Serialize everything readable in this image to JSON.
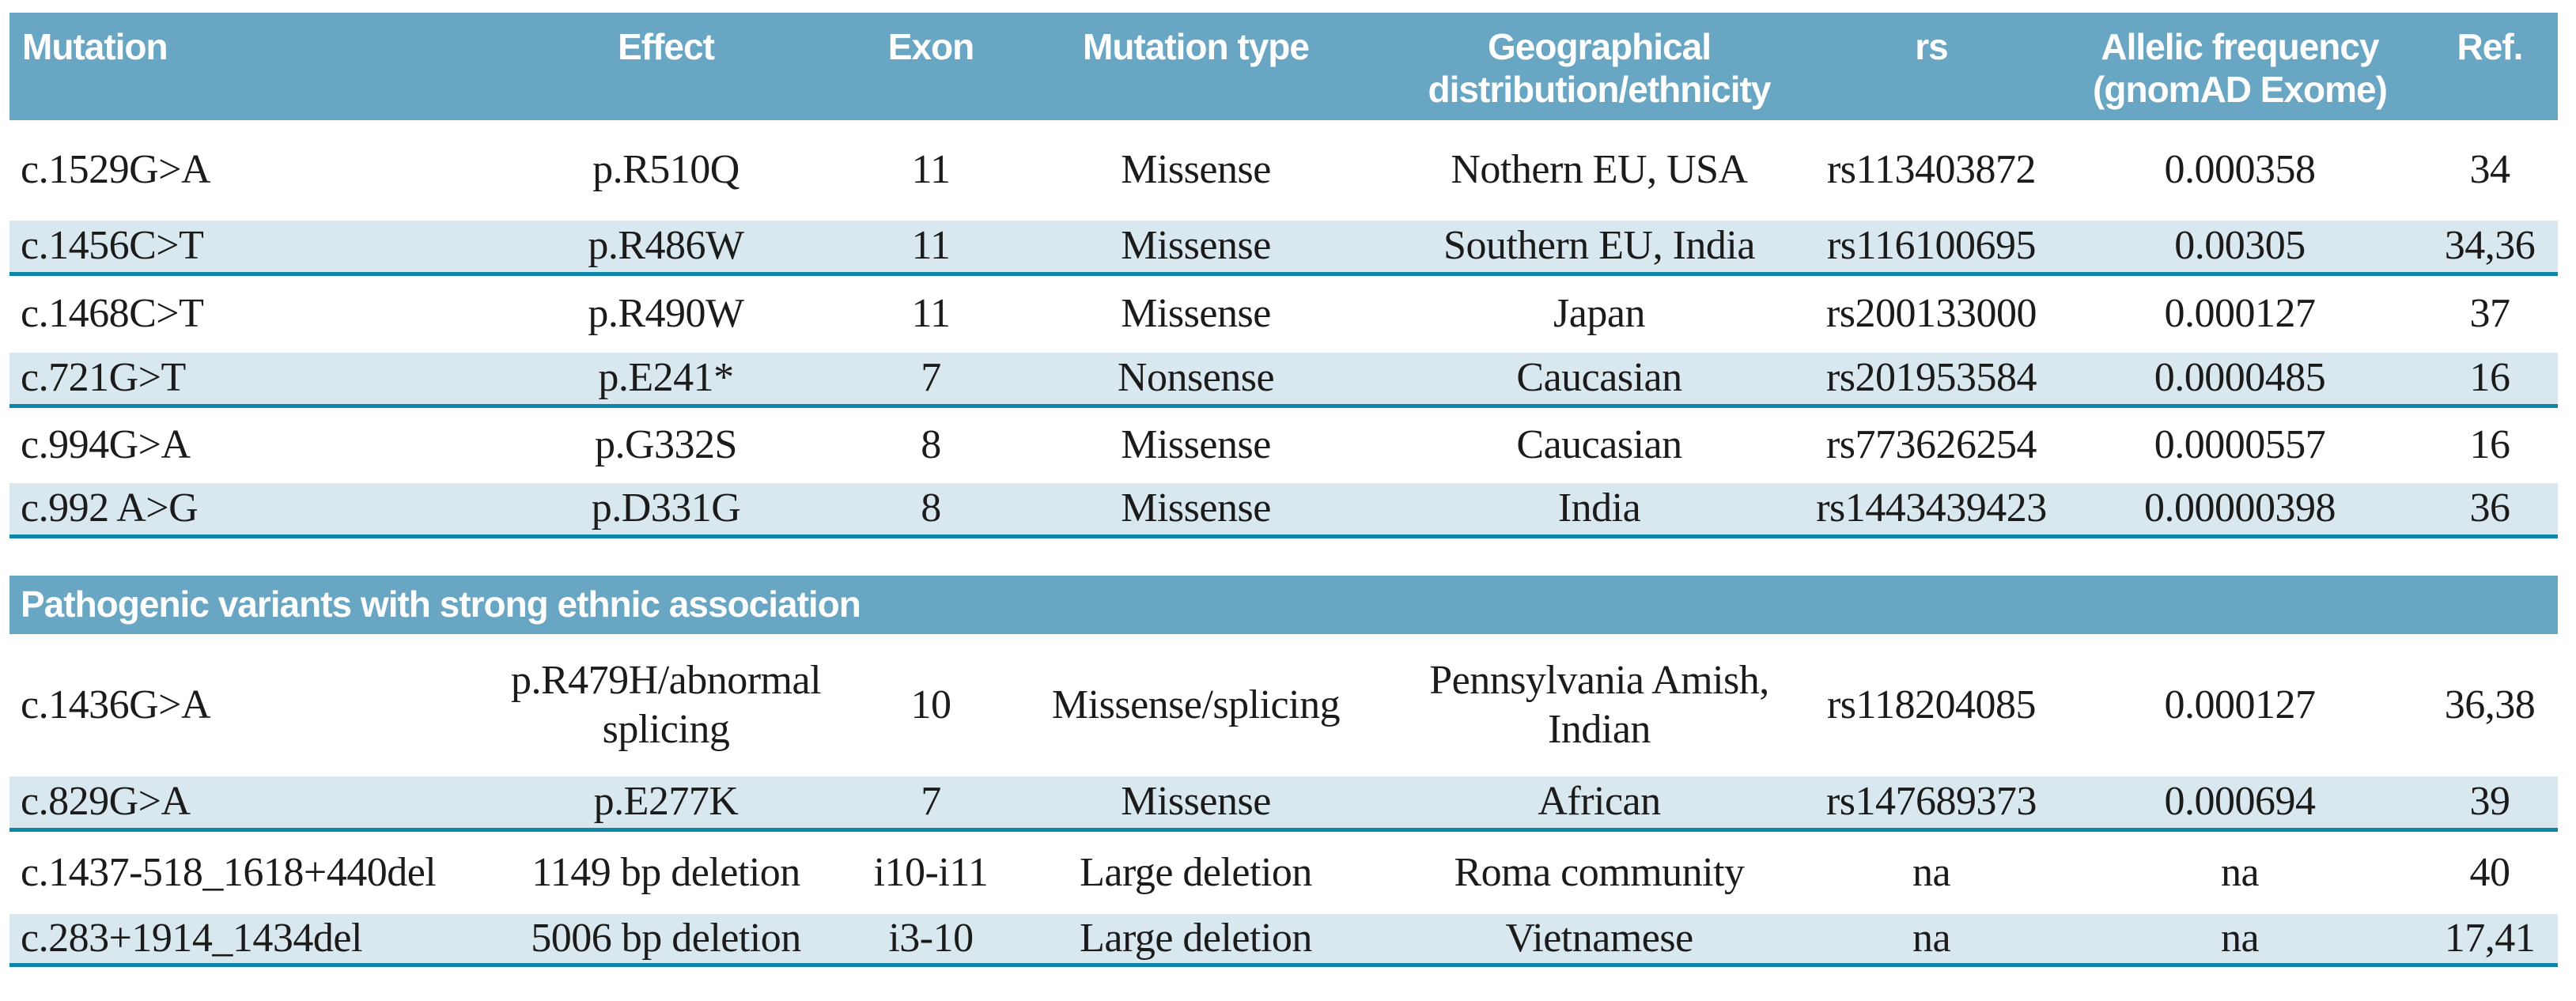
{
  "header": {
    "columns": [
      "Mutation",
      "Effect",
      "Exon",
      "Mutation type",
      "Geographical distribution/ethnicity",
      "rs",
      "Allelic frequency (gnomAD Exome)",
      "Ref."
    ]
  },
  "section_header": "Pathogenic variants with strong ethnic association",
  "rows": [
    {
      "cells": [
        "c.1529G>A",
        "p.R510Q",
        "11",
        "Missense",
        "Nothern EU, USA",
        "rs113403872",
        "0.000358",
        "34"
      ]
    },
    {
      "cells": [
        "c.1456C>T",
        "p.R486W",
        "11",
        "Missense",
        "Southern EU, India",
        "rs116100695",
        "0.00305",
        "34,36"
      ]
    },
    {
      "cells": [
        "c.1468C>T",
        "p.R490W",
        "11",
        "Missense",
        "Japan",
        "rs200133000",
        "0.000127",
        "37"
      ]
    },
    {
      "cells": [
        "c.721G>T",
        "p.E241*",
        "7",
        "Nonsense",
        "Caucasian",
        "rs201953584",
        "0.0000485",
        "16"
      ]
    },
    {
      "cells": [
        "c.994G>A",
        "p.G332S",
        "8",
        "Missense",
        "Caucasian",
        "rs773626254",
        "0.0000557",
        "16"
      ]
    },
    {
      "cells": [
        "c.992 A>G",
        "p.D331G",
        "8",
        "Missense",
        "India",
        "rs1443439423",
        "0.00000398",
        "36"
      ]
    },
    {
      "cells": [
        "c.1436G>A",
        "p.R479H/abnormal splicing",
        "10",
        "Missense/splicing",
        "Pennsylvania Amish, Indian",
        "rs118204085",
        "0.000127",
        "36,38"
      ]
    },
    {
      "cells": [
        "c.829G>A",
        "p.E277K",
        "7",
        "Missense",
        "African",
        "rs147689373",
        "0.000694",
        "39"
      ]
    },
    {
      "cells": [
        "c.1437-518_1618+440del",
        "1149 bp deletion",
        "i10-i11",
        "Large deletion",
        "Roma community",
        "na",
        "na",
        "40"
      ]
    },
    {
      "cells": [
        "c.283+1914_1434del",
        "5006 bp deletion",
        "i3-10",
        "Large deletion",
        "Vietnamese",
        "na",
        "na",
        "17,41"
      ]
    }
  ],
  "colors": {
    "header_bg": "#68a6c3",
    "section_bg": "#68a6c3",
    "shaded_row_bg": "#d9e7ee",
    "divider_line": "#0e86a8",
    "header_text": "#ffffff",
    "body_text": "#1b1b1b"
  }
}
